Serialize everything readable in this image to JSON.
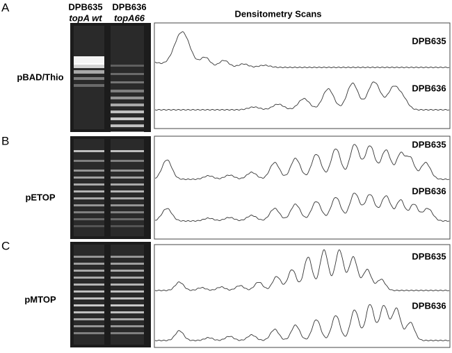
{
  "header": {
    "strain1": "DPB635",
    "genotype1": "topA wt",
    "strain2": "DPB636",
    "genotype2": "topA66",
    "scans_title": "Densitometry Scans"
  },
  "panels": [
    {
      "letter": "A",
      "plasmid": "pBAD/Thio",
      "traces": [
        "DPB635",
        "DPB636"
      ]
    },
    {
      "letter": "B",
      "plasmid": "pETOP",
      "traces": [
        "DPB635",
        "DPB636"
      ]
    },
    {
      "letter": "C",
      "plasmid": "pMTOP",
      "traces": [
        "DPB635",
        "DPB636"
      ]
    }
  ]
}
